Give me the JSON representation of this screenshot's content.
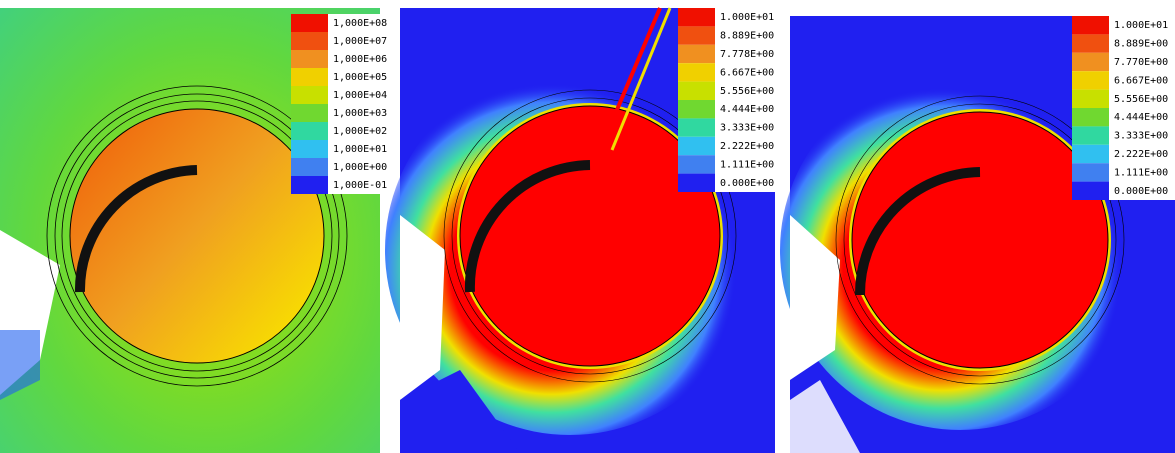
{
  "panels": [
    {
      "legend": [
        "1,000E+08",
        "1,000E+07",
        "1,000E+06",
        "1,000E+05",
        "1,000E+04",
        "1,000E+03",
        "1,000E+02",
        "1,000E+01",
        "1,000E+00",
        "1,000E-01"
      ]
    },
    {
      "legend": [
        "1.000E+01",
        "8.889E+00",
        "7.778E+00",
        "6.667E+00",
        "5.556E+00",
        "4.444E+00",
        "3.333E+00",
        "2.222E+00",
        "1.111E+00",
        "0.000E+00"
      ]
    },
    {
      "legend": [
        "1.000E+01",
        "8.889E+00",
        "7.770E+00",
        "6.667E+00",
        "5.556E+00",
        "4.444E+00",
        "3.333E+00",
        "2.222E+00",
        "1.111E+00",
        "0.000E+00"
      ]
    }
  ]
}
